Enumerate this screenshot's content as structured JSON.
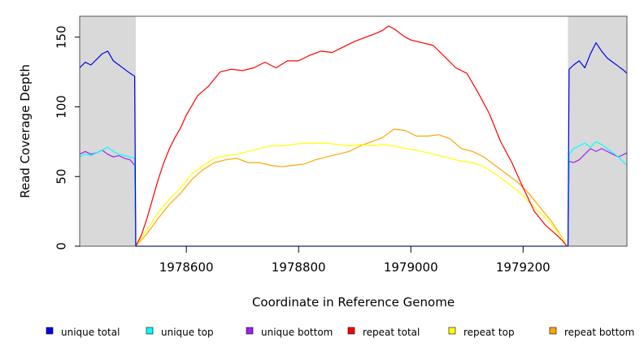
{
  "chart_data": {
    "type": "line",
    "title": "",
    "xlabel": "Coordinate in Reference Genome",
    "ylabel": "Read Coverage Depth",
    "xlim": [
      1978410,
      1979385
    ],
    "ylim": [
      0,
      165
    ],
    "x_ticks": [
      1978600,
      1978800,
      1979000,
      1979200
    ],
    "x_tick_labels": [
      "1978600",
      "1978800",
      "1979000",
      "1979200"
    ],
    "y_ticks": [
      0,
      50,
      100,
      150
    ],
    "y_tick_labels": [
      "0",
      "50",
      "100",
      "150"
    ],
    "grid": false,
    "legend_position": "bottom",
    "shaded_regions": [
      {
        "x": [
          1978410,
          1978510
        ],
        "color": "#d9d9d9"
      },
      {
        "x": [
          1979280,
          1979385
        ],
        "color": "#d9d9d9"
      }
    ],
    "series": [
      {
        "name": "unique total",
        "color": "#0000ee",
        "x": [
          1978410,
          1978420,
          1978430,
          1978440,
          1978450,
          1978460,
          1978470,
          1978480,
          1978490,
          1978500,
          1978508,
          1978510,
          1979280,
          1979282,
          1979290,
          1979300,
          1979310,
          1979320,
          1979330,
          1979340,
          1979350,
          1979360,
          1979370,
          1979380,
          1979385
        ],
        "y": [
          128,
          132,
          130,
          134,
          138,
          140,
          133,
          130,
          127,
          124,
          122,
          0,
          0,
          127,
          130,
          133,
          128,
          138,
          146,
          140,
          135,
          132,
          129,
          126,
          124
        ]
      },
      {
        "name": "unique top",
        "color": "#00ffff",
        "x": [
          1978410,
          1978420,
          1978430,
          1978440,
          1978450,
          1978460,
          1978470,
          1978480,
          1978490,
          1978500,
          1978508,
          1978510,
          1979280,
          1979282,
          1979290,
          1979300,
          1979310,
          1979320,
          1979330,
          1979340,
          1979350,
          1979360,
          1979370,
          1979380,
          1979385
        ],
        "y": [
          64,
          66,
          65,
          67,
          69,
          71,
          68,
          66,
          65,
          64,
          63,
          0,
          0,
          66,
          70,
          72,
          74,
          71,
          75,
          73,
          70,
          67,
          64,
          60,
          58
        ]
      },
      {
        "name": "unique bottom",
        "color": "#a020f0",
        "x": [
          1978410,
          1978420,
          1978430,
          1978440,
          1978450,
          1978460,
          1978470,
          1978480,
          1978490,
          1978500,
          1978508,
          1978510,
          1979280,
          1979282,
          1979290,
          1979300,
          1979310,
          1979320,
          1979330,
          1979340,
          1979350,
          1979360,
          1979370,
          1979380,
          1979385
        ],
        "y": [
          66,
          68,
          66,
          67,
          69,
          66,
          64,
          65,
          63,
          62,
          58,
          0,
          0,
          61,
          60,
          62,
          66,
          70,
          68,
          70,
          68,
          66,
          64,
          66,
          67
        ]
      },
      {
        "name": "repeat total",
        "color": "#ff0000",
        "x": [
          1978510,
          1978520,
          1978530,
          1978540,
          1978550,
          1978560,
          1978570,
          1978580,
          1978590,
          1978600,
          1978620,
          1978640,
          1978660,
          1978680,
          1978700,
          1978720,
          1978740,
          1978760,
          1978780,
          1978800,
          1978820,
          1978840,
          1978860,
          1978880,
          1978900,
          1978920,
          1978940,
          1978950,
          1978960,
          1978970,
          1978980,
          1978990,
          1979000,
          1979020,
          1979040,
          1979060,
          1979080,
          1979100,
          1979120,
          1979140,
          1979160,
          1979180,
          1979200,
          1979220,
          1979240,
          1979260,
          1979270,
          1979278
        ],
        "y": [
          0,
          8,
          20,
          34,
          48,
          60,
          70,
          78,
          85,
          94,
          108,
          115,
          125,
          127,
          126,
          128,
          132,
          128,
          133,
          133,
          137,
          140,
          139,
          143,
          147,
          150,
          153,
          155,
          158,
          156,
          153,
          150,
          148,
          146,
          144,
          136,
          128,
          124,
          110,
          95,
          75,
          60,
          42,
          25,
          15,
          8,
          4,
          0
        ]
      },
      {
        "name": "repeat top",
        "color": "#ffff00",
        "x": [
          1978510,
          1978530,
          1978550,
          1978570,
          1978590,
          1978610,
          1978630,
          1978650,
          1978670,
          1978690,
          1978710,
          1978730,
          1978750,
          1978770,
          1978790,
          1978810,
          1978830,
          1978850,
          1978870,
          1978890,
          1978910,
          1978930,
          1978950,
          1978970,
          1978990,
          1979010,
          1979030,
          1979050,
          1979070,
          1979090,
          1979110,
          1979130,
          1979150,
          1979170,
          1979190,
          1979210,
          1979230,
          1979250,
          1979270,
          1979278
        ],
        "y": [
          0,
          12,
          24,
          34,
          42,
          52,
          58,
          63,
          65,
          66,
          68,
          70,
          72,
          72,
          73,
          74,
          74,
          74,
          73,
          72,
          73,
          72,
          73,
          72,
          70,
          69,
          67,
          65,
          63,
          61,
          60,
          57,
          52,
          46,
          40,
          32,
          24,
          16,
          6,
          0
        ]
      },
      {
        "name": "repeat bottom",
        "color": "#ffa500",
        "x": [
          1978510,
          1978530,
          1978550,
          1978570,
          1978590,
          1978610,
          1978630,
          1978650,
          1978670,
          1978690,
          1978710,
          1978730,
          1978750,
          1978770,
          1978790,
          1978810,
          1978830,
          1978850,
          1978870,
          1978890,
          1978910,
          1978930,
          1978950,
          1978970,
          1978990,
          1979010,
          1979030,
          1979050,
          1979070,
          1979090,
          1979110,
          1979130,
          1979150,
          1979170,
          1979190,
          1979210,
          1979230,
          1979250,
          1979270,
          1979278
        ],
        "y": [
          0,
          9,
          20,
          30,
          38,
          48,
          55,
          60,
          62,
          63,
          60,
          60,
          58,
          57,
          58,
          59,
          62,
          64,
          66,
          68,
          72,
          75,
          78,
          84,
          83,
          79,
          79,
          80,
          77,
          70,
          68,
          64,
          58,
          52,
          46,
          38,
          28,
          18,
          6,
          0
        ]
      }
    ]
  }
}
